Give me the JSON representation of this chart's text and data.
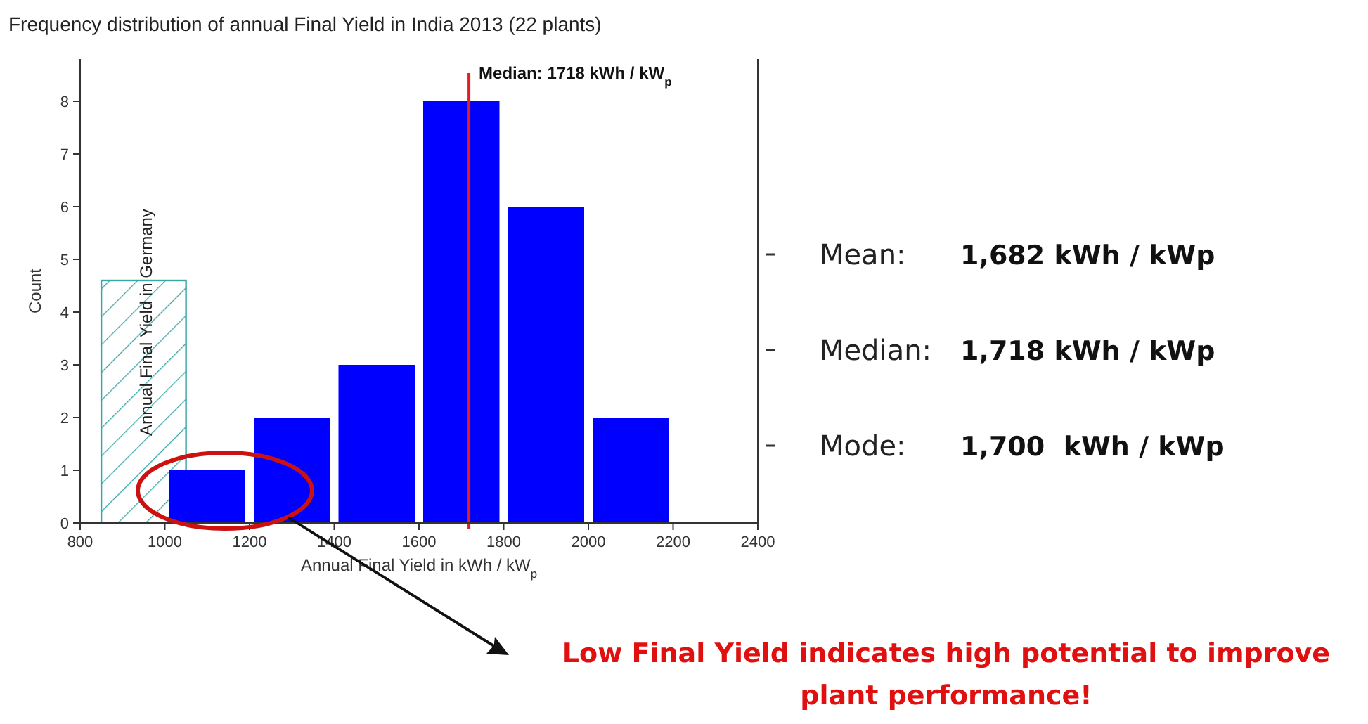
{
  "chart_data": {
    "type": "histogram",
    "title": "Frequency distribution of annual Final Yield in India 2013 (22 plants)",
    "xlabel": "Annual Final Yield in kWh / kW$_{p}$",
    "ylabel": "Count",
    "bins": [
      1000,
      1200,
      1400,
      1600,
      1800,
      2000,
      2200
    ],
    "values": [
      1,
      2,
      3,
      8,
      6,
      2
    ],
    "color": "#0000ff",
    "series": [
      {
        "type": "bar",
        "name": "Annual Final Yield in Germany",
        "color": "#3aa6a6",
        "x": [
          950
        ],
        "values": [
          4.6
        ]
      }
    ],
    "xlim": [
      800,
      2400
    ],
    "xticks": [
      800,
      1000,
      1200,
      1400,
      1600,
      1800,
      2000,
      2200,
      2400
    ],
    "ylim": [
      0,
      8.8
    ],
    "yticks": [
      0,
      1,
      2,
      3,
      4,
      5,
      6,
      7,
      8
    ],
    "ref_lines": [
      {
        "axis": "x",
        "value": 1718,
        "label": "Median: 1718 kWh / kW$_{p}$",
        "color": "#e02020"
      }
    ],
    "annotations": [
      "Mean:",
      "1,682 kWh / kWp",
      "Median:",
      "1,718 kWh / kWp",
      "Mode:",
      "1,700  kWh / kWp",
      "Low Final Yield indicates high potential to improve plant performance!"
    ]
  }
}
